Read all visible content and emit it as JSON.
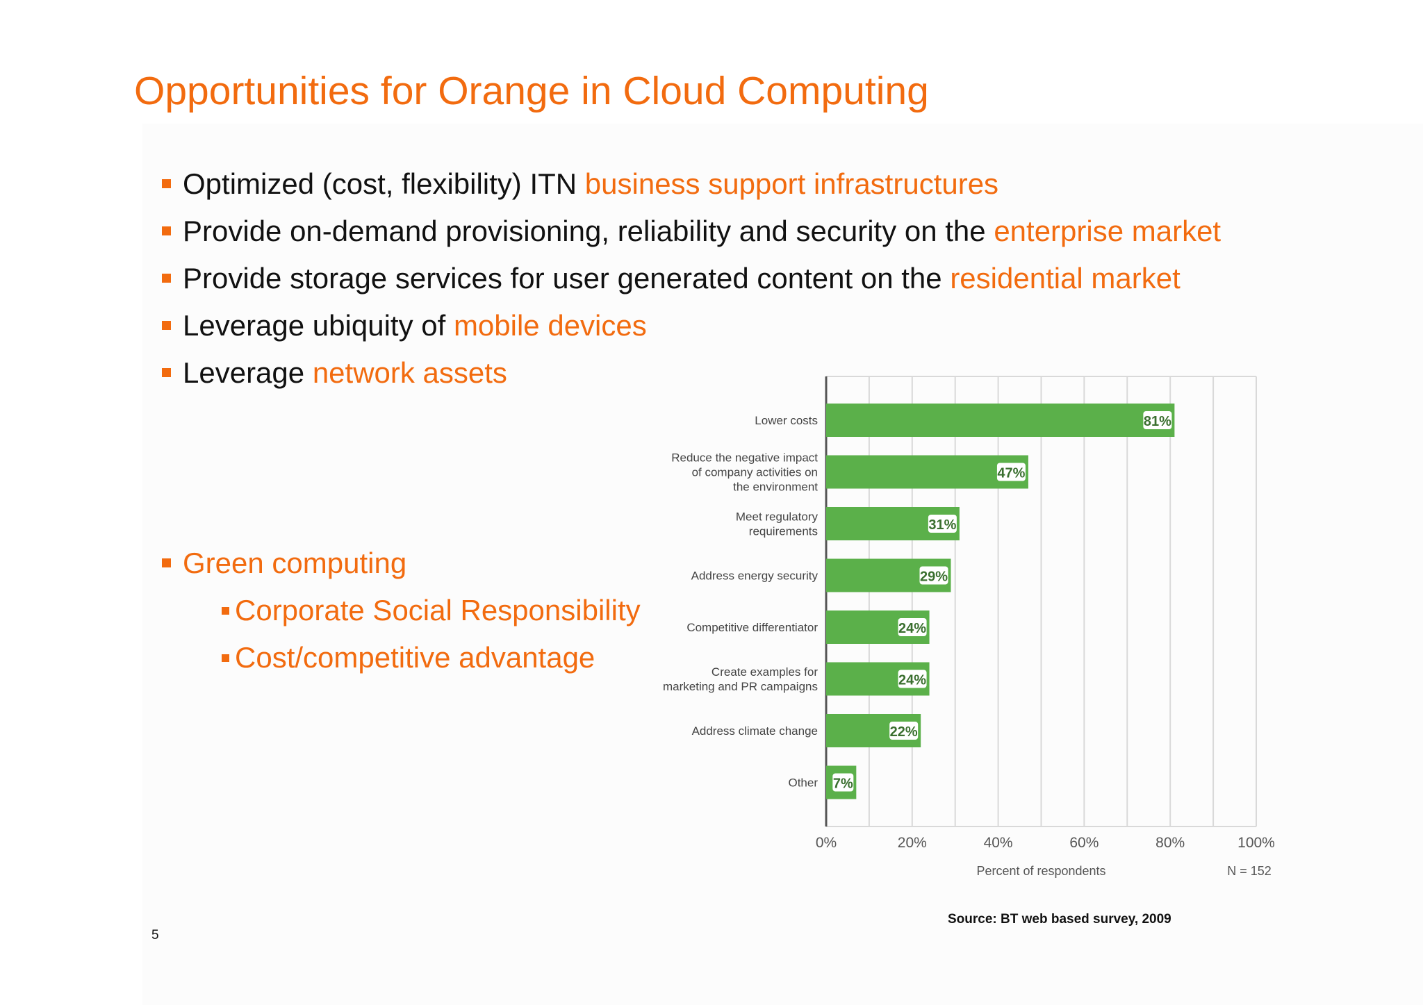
{
  "slide": {
    "title": "Opportunities for Orange in Cloud Computing",
    "page_number": "5",
    "source": "Source: BT  web based survey, 2009"
  },
  "bullets": [
    {
      "text": "Optimized (cost, flexibility) ITN ",
      "highlight": "business support infrastructures"
    },
    {
      "text": "Provide on-demand provisioning, reliability and security on the ",
      "highlight": "enterprise market"
    },
    {
      "text": "Provide storage services for user generated content on the ",
      "highlight": "residential market"
    },
    {
      "text": "Leverage ubiquity of ",
      "highlight": "mobile devices"
    },
    {
      "text": "Leverage ",
      "highlight": "network assets"
    }
  ],
  "green_computing": {
    "heading": "Green computing",
    "items": [
      "Corporate Social Responsibility",
      "Cost/competitive advantage"
    ]
  },
  "colors": {
    "accent": "#f26b0f",
    "bar": "#5bb04a",
    "grid": "#d9d9d9",
    "text": "#111111"
  },
  "chart_data": {
    "type": "bar",
    "orientation": "horizontal",
    "categories": [
      [
        "Lower costs"
      ],
      [
        "Reduce the negative impact",
        "of company activities on",
        "the environment"
      ],
      [
        "Meet regulatory",
        "requirements"
      ],
      [
        "Address energy security"
      ],
      [
        "Competitive differentiator"
      ],
      [
        "Create examples for",
        "marketing and PR campaigns"
      ],
      [
        "Address climate change"
      ],
      [
        "Other"
      ]
    ],
    "values": [
      81,
      47,
      31,
      29,
      24,
      24,
      22,
      7
    ],
    "value_labels": [
      "81%",
      "47%",
      "31%",
      "29%",
      "24%",
      "24%",
      "22%",
      "7%"
    ],
    "xlim": [
      0,
      100
    ],
    "xticks": [
      "0%",
      "20%",
      "40%",
      "60%",
      "80%",
      "100%"
    ],
    "xlabel": "Percent of respondents",
    "note": "N = 152",
    "grid": true
  }
}
